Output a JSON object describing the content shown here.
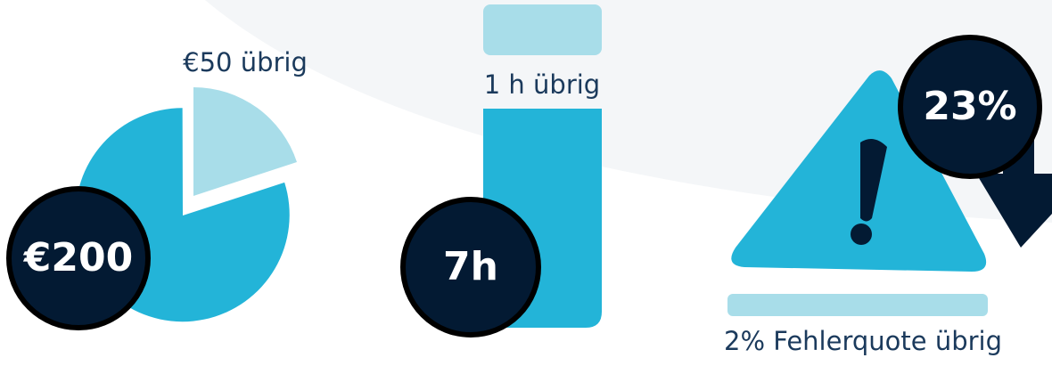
{
  "budget": {
    "remaining": "€50 übrig",
    "spent": "€200"
  },
  "time": {
    "remaining": "1 h übrig",
    "spent": "7h"
  },
  "errors": {
    "reduction": "23%",
    "remaining": "2% Fehlerquote übrig"
  }
}
